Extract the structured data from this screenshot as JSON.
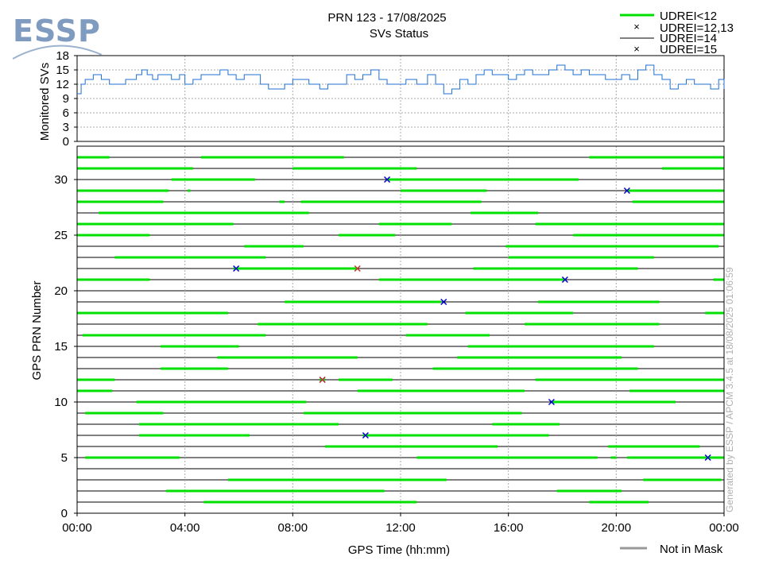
{
  "logo": {
    "text": "ESSP"
  },
  "chart_data": [
    {
      "type": "line",
      "title": "PRN 123 - 17/08/2025",
      "subtitle": "SVs Status",
      "xlabel": "",
      "ylabel": "Monitored SVs",
      "ylim": [
        0,
        18
      ],
      "yticks": [
        "0",
        "3",
        "6",
        "9",
        "12",
        "15",
        "18"
      ],
      "grid": true,
      "series": [
        {
          "color": "#1f6fd1",
          "x": [
            0.0,
            0.15,
            0.3,
            0.6,
            0.9,
            1.2,
            1.5,
            1.8,
            2.0,
            2.2,
            2.4,
            2.6,
            2.8,
            3.0,
            3.2,
            3.5,
            3.8,
            4.0,
            4.3,
            4.6,
            5.0,
            5.3,
            5.6,
            5.9,
            6.2,
            6.5,
            6.8,
            7.1,
            7.4,
            7.7,
            8.0,
            8.3,
            8.6,
            9.0,
            9.3,
            9.6,
            10.0,
            10.3,
            10.6,
            10.9,
            11.2,
            11.5,
            11.8,
            12.2,
            12.6,
            13.0,
            13.3,
            13.6,
            13.9,
            14.2,
            14.5,
            14.8,
            15.1,
            15.4,
            15.7,
            16.0,
            16.3,
            16.6,
            16.9,
            17.2,
            17.5,
            17.8,
            18.1,
            18.4,
            18.7,
            19.0,
            19.3,
            19.6,
            19.9,
            20.2,
            20.5,
            20.8,
            21.1,
            21.4,
            21.7,
            22.0,
            22.3,
            22.6,
            22.9,
            23.2,
            23.5,
            23.8,
            24.0
          ],
          "y": [
            10,
            12,
            13,
            14,
            13,
            12,
            12,
            13,
            13,
            14,
            15,
            14,
            13,
            14,
            14,
            13,
            14,
            12,
            13,
            14,
            14,
            15,
            14,
            13,
            14,
            14,
            12,
            11,
            11,
            12,
            13,
            13,
            12,
            11,
            12,
            12,
            14,
            13,
            14,
            15,
            13,
            12,
            12,
            13,
            12,
            14,
            12,
            10,
            11,
            13,
            12,
            14,
            15,
            14,
            14,
            13,
            14,
            15,
            14,
            14,
            15,
            16,
            15,
            14,
            15,
            14,
            14,
            13,
            13,
            14,
            13,
            15,
            16,
            14,
            13,
            11,
            12,
            13,
            12,
            12,
            11,
            13,
            11
          ]
        }
      ]
    },
    {
      "type": "scatter",
      "title": "",
      "xlabel": "GPS Time (hh:mm)",
      "ylabel": "GPS PRN Number",
      "ylim": [
        0,
        33
      ],
      "yticks": [
        "0",
        "5",
        "10",
        "15",
        "20",
        "25",
        "30"
      ],
      "xticks": [
        "00:00",
        "04:00",
        "08:00",
        "12:00",
        "16:00",
        "20:00",
        "00:00"
      ],
      "xlim_hours": [
        0,
        24
      ],
      "grid": true,
      "prn_visibility": [
        {
          "prn": 1,
          "segments": [
            [
              4.7,
              12.6
            ],
            [
              19.0,
              21.2
            ]
          ]
        },
        {
          "prn": 2,
          "segments": [
            [
              3.3,
              11.4
            ],
            [
              17.8,
              20.2
            ]
          ]
        },
        {
          "prn": 3,
          "segments": [
            [
              5.6,
              13.7
            ],
            [
              21.0,
              23.9
            ]
          ]
        },
        {
          "prn": 5,
          "segments": [
            [
              0.3,
              3.8
            ],
            [
              12.6,
              19.3
            ],
            [
              19.8,
              20.0
            ],
            [
              20.4,
              24.0
            ]
          ]
        },
        {
          "prn": 6,
          "segments": [
            [
              9.2,
              15.6
            ],
            [
              19.7,
              23.1
            ]
          ]
        },
        {
          "prn": 7,
          "segments": [
            [
              2.3,
              6.4
            ],
            [
              10.6,
              17.5
            ]
          ]
        },
        {
          "prn": 8,
          "segments": [
            [
              2.3,
              9.7
            ],
            [
              15.4,
              17.9
            ]
          ]
        },
        {
          "prn": 9,
          "segments": [
            [
              0.3,
              3.2
            ],
            [
              8.4,
              16.5
            ]
          ]
        },
        {
          "prn": 10,
          "segments": [
            [
              2.2,
              8.5
            ],
            [
              17.6,
              22.2
            ]
          ]
        },
        {
          "prn": 11,
          "segments": [
            [
              0.0,
              1.3
            ],
            [
              10.4,
              16.6
            ],
            [
              20.5,
              24.0
            ]
          ]
        },
        {
          "prn": 12,
          "segments": [
            [
              0.0,
              1.4
            ],
            [
              9.0,
              9.2
            ],
            [
              9.7,
              11.7
            ],
            [
              17.0,
              24.0
            ]
          ]
        },
        {
          "prn": 13,
          "segments": [
            [
              3.1,
              5.6
            ],
            [
              13.2,
              20.8
            ]
          ]
        },
        {
          "prn": 14,
          "segments": [
            [
              5.2,
              10.4
            ],
            [
              14.1,
              20.2
            ]
          ]
        },
        {
          "prn": 15,
          "segments": [
            [
              3.1,
              6.0
            ],
            [
              14.5,
              21.4
            ]
          ]
        },
        {
          "prn": 16,
          "segments": [
            [
              0.2,
              7.0
            ],
            [
              12.2,
              15.3
            ]
          ]
        },
        {
          "prn": 17,
          "segments": [
            [
              6.7,
              13.0
            ],
            [
              16.6,
              21.6
            ]
          ]
        },
        {
          "prn": 18,
          "segments": [
            [
              0.0,
              5.6
            ],
            [
              14.4,
              18.4
            ],
            [
              23.3,
              24.0
            ]
          ]
        },
        {
          "prn": 19,
          "segments": [
            [
              7.7,
              13.5
            ],
            [
              17.1,
              21.6
            ]
          ]
        },
        {
          "prn": 21,
          "segments": [
            [
              0.0,
              2.7
            ],
            [
              11.2,
              18.1
            ],
            [
              23.6,
              24.0
            ]
          ]
        },
        {
          "prn": 22,
          "segments": [
            [
              5.8,
              10.4
            ],
            [
              14.7,
              20.8
            ]
          ]
        },
        {
          "prn": 23,
          "segments": [
            [
              1.4,
              7.0
            ],
            [
              16.0,
              21.4
            ]
          ]
        },
        {
          "prn": 24,
          "segments": [
            [
              6.2,
              8.4
            ],
            [
              15.9,
              23.8
            ]
          ]
        },
        {
          "prn": 25,
          "segments": [
            [
              0.0,
              2.7
            ],
            [
              9.7,
              11.8
            ],
            [
              18.4,
              24.0
            ]
          ]
        },
        {
          "prn": 26,
          "segments": [
            [
              0.0,
              5.8
            ],
            [
              11.2,
              13.9
            ],
            [
              17.0,
              24.0
            ]
          ]
        },
        {
          "prn": 27,
          "segments": [
            [
              0.8,
              8.6
            ],
            [
              14.6,
              17.1
            ]
          ]
        },
        {
          "prn": 28,
          "segments": [
            [
              0.0,
              3.2
            ],
            [
              7.5,
              7.7
            ],
            [
              8.3,
              15.0
            ],
            [
              20.6,
              24.0
            ]
          ]
        },
        {
          "prn": 29,
          "segments": [
            [
              0.0,
              3.4
            ],
            [
              4.1,
              4.2
            ],
            [
              12.0,
              15.2
            ],
            [
              20.4,
              24.0
            ]
          ]
        },
        {
          "prn": 30,
          "segments": [
            [
              3.5,
              6.6
            ],
            [
              11.5,
              18.6
            ]
          ]
        },
        {
          "prn": 31,
          "segments": [
            [
              0.0,
              4.3
            ],
            [
              8.0,
              12.6
            ],
            [
              21.7,
              24.0
            ]
          ]
        },
        {
          "prn": 32,
          "segments": [
            [
              0.0,
              1.2
            ],
            [
              4.6,
              9.9
            ],
            [
              19.0,
              24.0
            ]
          ]
        }
      ],
      "markers_udrei_12_13": [
        {
          "prn": 30,
          "x": 11.5
        },
        {
          "prn": 29,
          "x": 20.4
        },
        {
          "prn": 22,
          "x": 5.9
        },
        {
          "prn": 21,
          "x": 18.1
        },
        {
          "prn": 19,
          "x": 13.6
        },
        {
          "prn": 12,
          "x": 9.1
        },
        {
          "prn": 10,
          "x": 17.6
        },
        {
          "prn": 7,
          "x": 10.7
        },
        {
          "prn": 5,
          "x": 23.4
        }
      ],
      "markers_udrei_15": [
        {
          "prn": 22,
          "x": 10.4
        },
        {
          "prn": 12,
          "x": 9.1
        }
      ]
    }
  ],
  "legend": {
    "items": [
      {
        "label": "UDREI<12",
        "color": "#00e000",
        "style": "thick-line"
      },
      {
        "label": "UDREI=12,13",
        "color": "#1f6fd1",
        "style": "x-marker"
      },
      {
        "label": "UDREI=14",
        "color": "#000000",
        "style": "thin-line"
      },
      {
        "label": "UDREI=15",
        "color": "#c0392b",
        "style": "x-marker"
      }
    ],
    "not_in_mask": {
      "label": "Not in Mask",
      "color": "#999999"
    }
  },
  "side_note": "Generated by ESSP / APCM 3.4.5 at 18/08/2025 01:06:59"
}
